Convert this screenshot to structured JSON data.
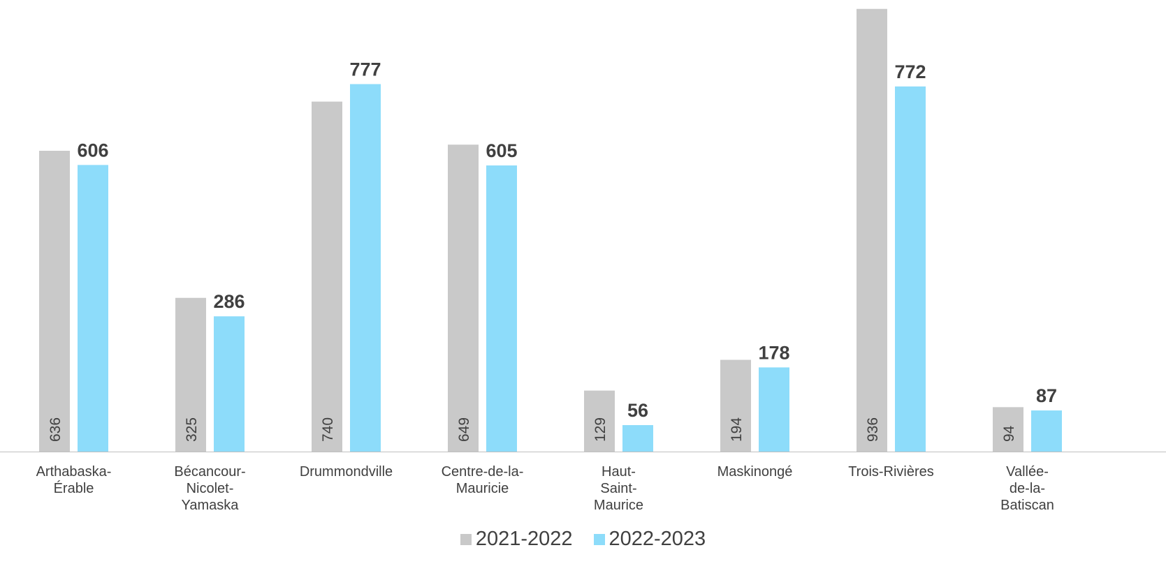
{
  "chart_data": {
    "type": "bar",
    "categories": [
      [
        "Arthabaska-",
        "Érable"
      ],
      [
        "Bécancour-",
        "Nicolet-",
        "Yamaska"
      ],
      [
        "Drummondville"
      ],
      [
        "Centre-de-la-",
        "Mauricie"
      ],
      [
        "Haut-",
        "Saint-",
        "Maurice"
      ],
      [
        "Maskinongé"
      ],
      [
        "Trois-Rivières"
      ],
      [
        "Vallée-",
        "de-la-",
        "Batiscan"
      ]
    ],
    "series": [
      {
        "name": "2021-2022",
        "color": "#c9c9c9",
        "values": [
          636,
          325,
          740,
          649,
          129,
          194,
          936,
          94
        ],
        "labels": [
          "636",
          "325",
          "740",
          "649",
          "129",
          "194",
          "936",
          "94"
        ]
      },
      {
        "name": "2022-2023",
        "color": "#8ddcfa",
        "values": [
          606,
          286,
          777,
          605,
          56,
          178,
          772,
          87
        ],
        "labels": [
          "606",
          "286",
          "777",
          "605",
          "56",
          "178",
          "772",
          "87"
        ]
      }
    ],
    "ylim": [
      0,
      943
    ],
    "grid": false,
    "legend": "bottom"
  }
}
